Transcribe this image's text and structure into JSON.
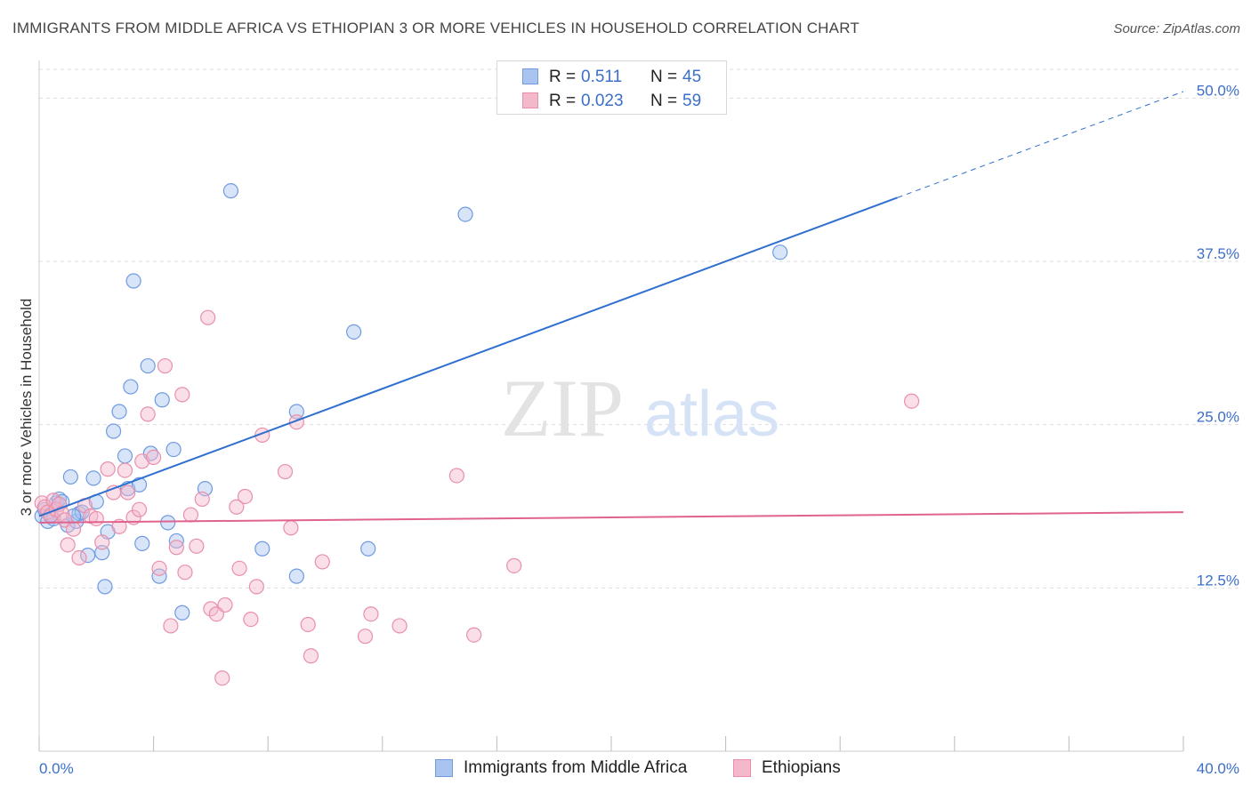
{
  "title": "IMMIGRANTS FROM MIDDLE AFRICA VS ETHIOPIAN 3 OR MORE VEHICLES IN HOUSEHOLD CORRELATION CHART",
  "source": "Source: ZipAtlas.com",
  "watermark": {
    "part1": "ZIP",
    "part2": "atlas"
  },
  "legend": {
    "rows": [
      {
        "r_label": "R =",
        "r_value": "0.511",
        "n_label": "N =",
        "n_value": "45"
      },
      {
        "r_label": "R =",
        "r_value": "0.023",
        "n_label": "N =",
        "n_value": "59"
      }
    ]
  },
  "colors": {
    "blue_fill": "#a8c4ef",
    "blue_stroke": "#6f9be0",
    "blue_line": "#2f6fcf",
    "pink_fill": "#f4b8cb",
    "pink_stroke": "#e98fab",
    "pink_line": "#e0638f",
    "tick_text": "#3b6fc9",
    "grid": "#dddddd"
  },
  "chart_data": {
    "type": "scatter",
    "title": "IMMIGRANTS FROM MIDDLE AFRICA VS ETHIOPIAN 3 OR MORE VEHICLES IN HOUSEHOLD CORRELATION CHART",
    "xlabel": "",
    "ylabel": "3 or more Vehicles in Household",
    "xlim": [
      0,
      40
    ],
    "ylim": [
      0,
      50
    ],
    "x_tick_labels": [
      "0.0%",
      "40.0%"
    ],
    "y_ticks": [
      12.5,
      25.0,
      37.5,
      50.0
    ],
    "y_tick_labels": [
      "12.5%",
      "25.0%",
      "37.5%",
      "50.0%"
    ],
    "grid": true,
    "legend_position": "top-center",
    "series": [
      {
        "name": "Immigrants from Middle Africa",
        "color": "#a8c4ef",
        "points": [
          [
            0.1,
            18.0
          ],
          [
            0.2,
            18.5
          ],
          [
            0.3,
            17.6
          ],
          [
            0.4,
            18.1
          ],
          [
            0.5,
            17.8
          ],
          [
            0.6,
            19.0
          ],
          [
            0.7,
            19.3
          ],
          [
            0.8,
            19.1
          ],
          [
            1.0,
            17.3
          ],
          [
            1.1,
            21.0
          ],
          [
            1.3,
            17.6
          ],
          [
            1.4,
            18.2
          ],
          [
            1.5,
            18.3
          ],
          [
            1.7,
            15.0
          ],
          [
            1.9,
            20.9
          ],
          [
            2.0,
            19.1
          ],
          [
            2.2,
            15.2
          ],
          [
            2.3,
            12.6
          ],
          [
            2.4,
            16.8
          ],
          [
            2.6,
            24.5
          ],
          [
            2.8,
            26.0
          ],
          [
            3.0,
            22.6
          ],
          [
            3.1,
            20.1
          ],
          [
            3.2,
            27.9
          ],
          [
            3.3,
            36.0
          ],
          [
            3.5,
            20.4
          ],
          [
            3.6,
            15.9
          ],
          [
            3.8,
            29.5
          ],
          [
            3.9,
            22.8
          ],
          [
            4.2,
            13.4
          ],
          [
            4.3,
            26.9
          ],
          [
            4.5,
            17.5
          ],
          [
            4.7,
            23.1
          ],
          [
            4.8,
            16.1
          ],
          [
            5.0,
            10.6
          ],
          [
            5.8,
            20.1
          ],
          [
            6.7,
            42.9
          ],
          [
            7.8,
            15.5
          ],
          [
            9.0,
            13.4
          ],
          [
            9.0,
            26.0
          ],
          [
            11.0,
            32.1
          ],
          [
            11.5,
            15.5
          ],
          [
            14.9,
            41.1
          ],
          [
            25.9,
            38.2
          ],
          [
            1.2,
            18.0
          ]
        ]
      },
      {
        "name": "Ethiopians",
        "color": "#f4b8cb",
        "points": [
          [
            0.1,
            19.0
          ],
          [
            0.2,
            18.7
          ],
          [
            0.3,
            18.3
          ],
          [
            0.4,
            18.0
          ],
          [
            0.5,
            19.2
          ],
          [
            0.6,
            18.5
          ],
          [
            0.7,
            18.9
          ],
          [
            0.8,
            18.2
          ],
          [
            0.9,
            17.7
          ],
          [
            1.0,
            15.8
          ],
          [
            1.2,
            17.0
          ],
          [
            1.4,
            14.8
          ],
          [
            1.6,
            18.8
          ],
          [
            1.8,
            18.0
          ],
          [
            2.0,
            17.8
          ],
          [
            2.2,
            16.0
          ],
          [
            2.4,
            21.6
          ],
          [
            2.6,
            19.8
          ],
          [
            2.8,
            17.2
          ],
          [
            3.0,
            21.5
          ],
          [
            3.1,
            19.8
          ],
          [
            3.3,
            17.9
          ],
          [
            3.5,
            18.5
          ],
          [
            3.6,
            22.2
          ],
          [
            3.8,
            25.8
          ],
          [
            4.0,
            22.5
          ],
          [
            4.2,
            14.0
          ],
          [
            4.4,
            29.5
          ],
          [
            4.6,
            9.6
          ],
          [
            4.8,
            15.6
          ],
          [
            5.0,
            27.3
          ],
          [
            5.1,
            13.7
          ],
          [
            5.3,
            18.1
          ],
          [
            5.5,
            15.7
          ],
          [
            5.7,
            19.3
          ],
          [
            5.9,
            33.2
          ],
          [
            6.0,
            10.9
          ],
          [
            6.2,
            10.5
          ],
          [
            6.4,
            5.6
          ],
          [
            6.5,
            11.2
          ],
          [
            6.9,
            18.7
          ],
          [
            7.0,
            14.0
          ],
          [
            7.2,
            19.5
          ],
          [
            7.4,
            10.1
          ],
          [
            7.6,
            12.6
          ],
          [
            7.8,
            24.2
          ],
          [
            8.6,
            21.4
          ],
          [
            8.8,
            17.1
          ],
          [
            9.0,
            25.2
          ],
          [
            9.4,
            9.7
          ],
          [
            9.5,
            7.3
          ],
          [
            9.9,
            14.5
          ],
          [
            11.4,
            8.8
          ],
          [
            11.6,
            10.5
          ],
          [
            12.6,
            9.6
          ],
          [
            14.6,
            21.1
          ],
          [
            15.2,
            8.9
          ],
          [
            16.6,
            14.2
          ],
          [
            30.5,
            26.8
          ]
        ]
      }
    ],
    "trendlines": [
      {
        "series": "Immigrants from Middle Africa",
        "x": [
          0,
          40
        ],
        "y": [
          18.0,
          50.5
        ],
        "solid_until_x": 30.0
      },
      {
        "series": "Ethiopians",
        "x": [
          0,
          40
        ],
        "y": [
          17.5,
          18.3
        ]
      }
    ]
  },
  "bottom_legend": [
    {
      "label": "Immigrants from Middle Africa"
    },
    {
      "label": "Ethiopians"
    }
  ]
}
